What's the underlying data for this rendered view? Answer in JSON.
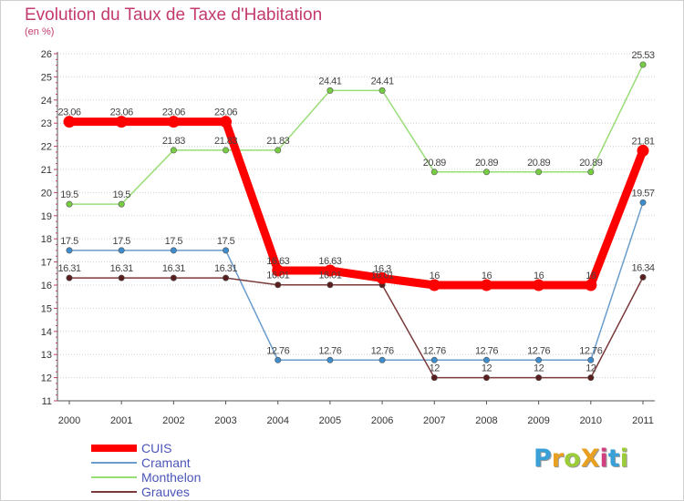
{
  "title": "Evolution du Taux de Taxe d'Habitation",
  "subtitle": "(en %)",
  "logo": {
    "text": "ProXiti",
    "colors": [
      "#3aa0d8",
      "#e8a020",
      "#9ccc3a",
      "#e8a020",
      "#d04080",
      "#3aa0d8",
      "#9ccc3a"
    ]
  },
  "chart_data": {
    "type": "line",
    "x": [
      "2000",
      "2001",
      "2002",
      "2003",
      "2004",
      "2005",
      "2006",
      "2007",
      "2008",
      "2009",
      "2010",
      "2011"
    ],
    "ylim": [
      11,
      26
    ],
    "yticks": [
      11,
      12,
      13,
      14,
      15,
      16,
      17,
      18,
      19,
      20,
      21,
      22,
      23,
      24,
      25,
      26
    ],
    "grid": "horizontal dotted",
    "legend_position": "bottom-left",
    "series": [
      {
        "name": "CUIS",
        "color": "#ff0000",
        "values": [
          23.06,
          23.06,
          23.06,
          23.06,
          16.63,
          16.63,
          16.3,
          16,
          16,
          16,
          16,
          21.81
        ],
        "labels": [
          "23.06",
          "23.06",
          "23.06",
          "23.06",
          "16.63",
          "16.63",
          "16.3",
          "16",
          "16",
          "16",
          "16",
          "21.81"
        ]
      },
      {
        "name": "Cramant",
        "color": "#6a9ccc",
        "values": [
          17.5,
          17.5,
          17.5,
          17.5,
          12.76,
          12.76,
          12.76,
          12.76,
          12.76,
          12.76,
          12.76,
          19.57
        ],
        "labels": [
          "17.5",
          "17.5",
          "17.5",
          "17.5",
          "12.76",
          "12.76",
          "12.76",
          "12.76",
          "12.76",
          "12.76",
          "12.76",
          "19.57"
        ]
      },
      {
        "name": "Monthelon",
        "color": "#99dd77",
        "values": [
          19.5,
          19.5,
          21.83,
          21.83,
          21.83,
          24.41,
          24.41,
          20.89,
          20.89,
          20.89,
          20.89,
          25.53
        ],
        "labels": [
          "19.5",
          "19.5",
          "21.83",
          "21.83",
          "21.83",
          "24.41",
          "24.41",
          "20.89",
          "20.89",
          "20.89",
          "20.89",
          "25.53"
        ]
      },
      {
        "name": "Grauves",
        "color": "#7a3a3a",
        "values": [
          16.31,
          16.31,
          16.31,
          16.31,
          16.01,
          16.01,
          16.01,
          12,
          12,
          12,
          12,
          16.34
        ],
        "labels": [
          "16.31",
          "16.31",
          "16.31",
          "16.31",
          "16.01",
          "16.01",
          "16.01",
          "12",
          "12",
          "12",
          "12",
          "16.34"
        ]
      }
    ]
  }
}
